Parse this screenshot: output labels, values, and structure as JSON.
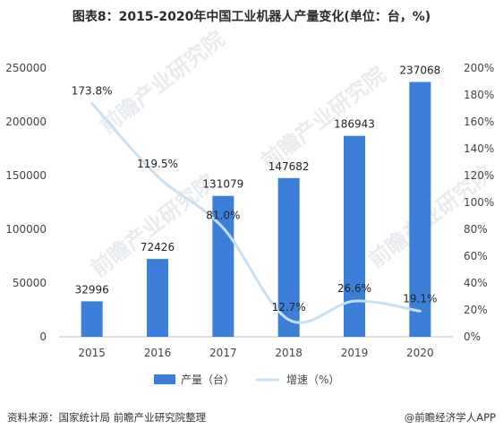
{
  "title": "图表8：2015-2020年中国工业机器人产量变化(单位：台，%)",
  "footer": {
    "source": "资料来源：国家统计局 前瞻产业研究院整理",
    "brand": "@前瞻经济学人APP"
  },
  "watermark": "前瞻产业研究院",
  "colors": {
    "bar": "#3c7fd9",
    "line": "#c9dff2",
    "axis": "#bfbfbf"
  },
  "chart_data": {
    "type": "bar",
    "categories": [
      "2015",
      "2016",
      "2017",
      "2018",
      "2019",
      "2020"
    ],
    "series": [
      {
        "name": "产量（台）",
        "type": "bar",
        "axis": "left",
        "values": [
          32996,
          72426,
          131079,
          147682,
          186943,
          237068
        ]
      },
      {
        "name": "增速（%）",
        "type": "line",
        "axis": "right",
        "smooth": true,
        "values": [
          173.8,
          119.5,
          81.0,
          12.7,
          26.6,
          19.1
        ]
      }
    ],
    "value_labels": {
      "bar": [
        "32996",
        "72426",
        "131079",
        "147682",
        "186943",
        "237068"
      ],
      "line": [
        "173.8%",
        "119.5%",
        "81.0%",
        "12.7%",
        "26.6%",
        "19.1%"
      ]
    },
    "y_left": {
      "min": 0,
      "max": 250000,
      "ticks": [
        "0",
        "50000",
        "100000",
        "150000",
        "200000",
        "250000"
      ]
    },
    "y_right": {
      "min": 0,
      "max": 200,
      "ticks": [
        "0%",
        "20%",
        "40%",
        "60%",
        "80%",
        "100%",
        "120%",
        "140%",
        "160%",
        "180%",
        "200%"
      ]
    },
    "legend": {
      "position": "bottom"
    },
    "grid": false
  }
}
